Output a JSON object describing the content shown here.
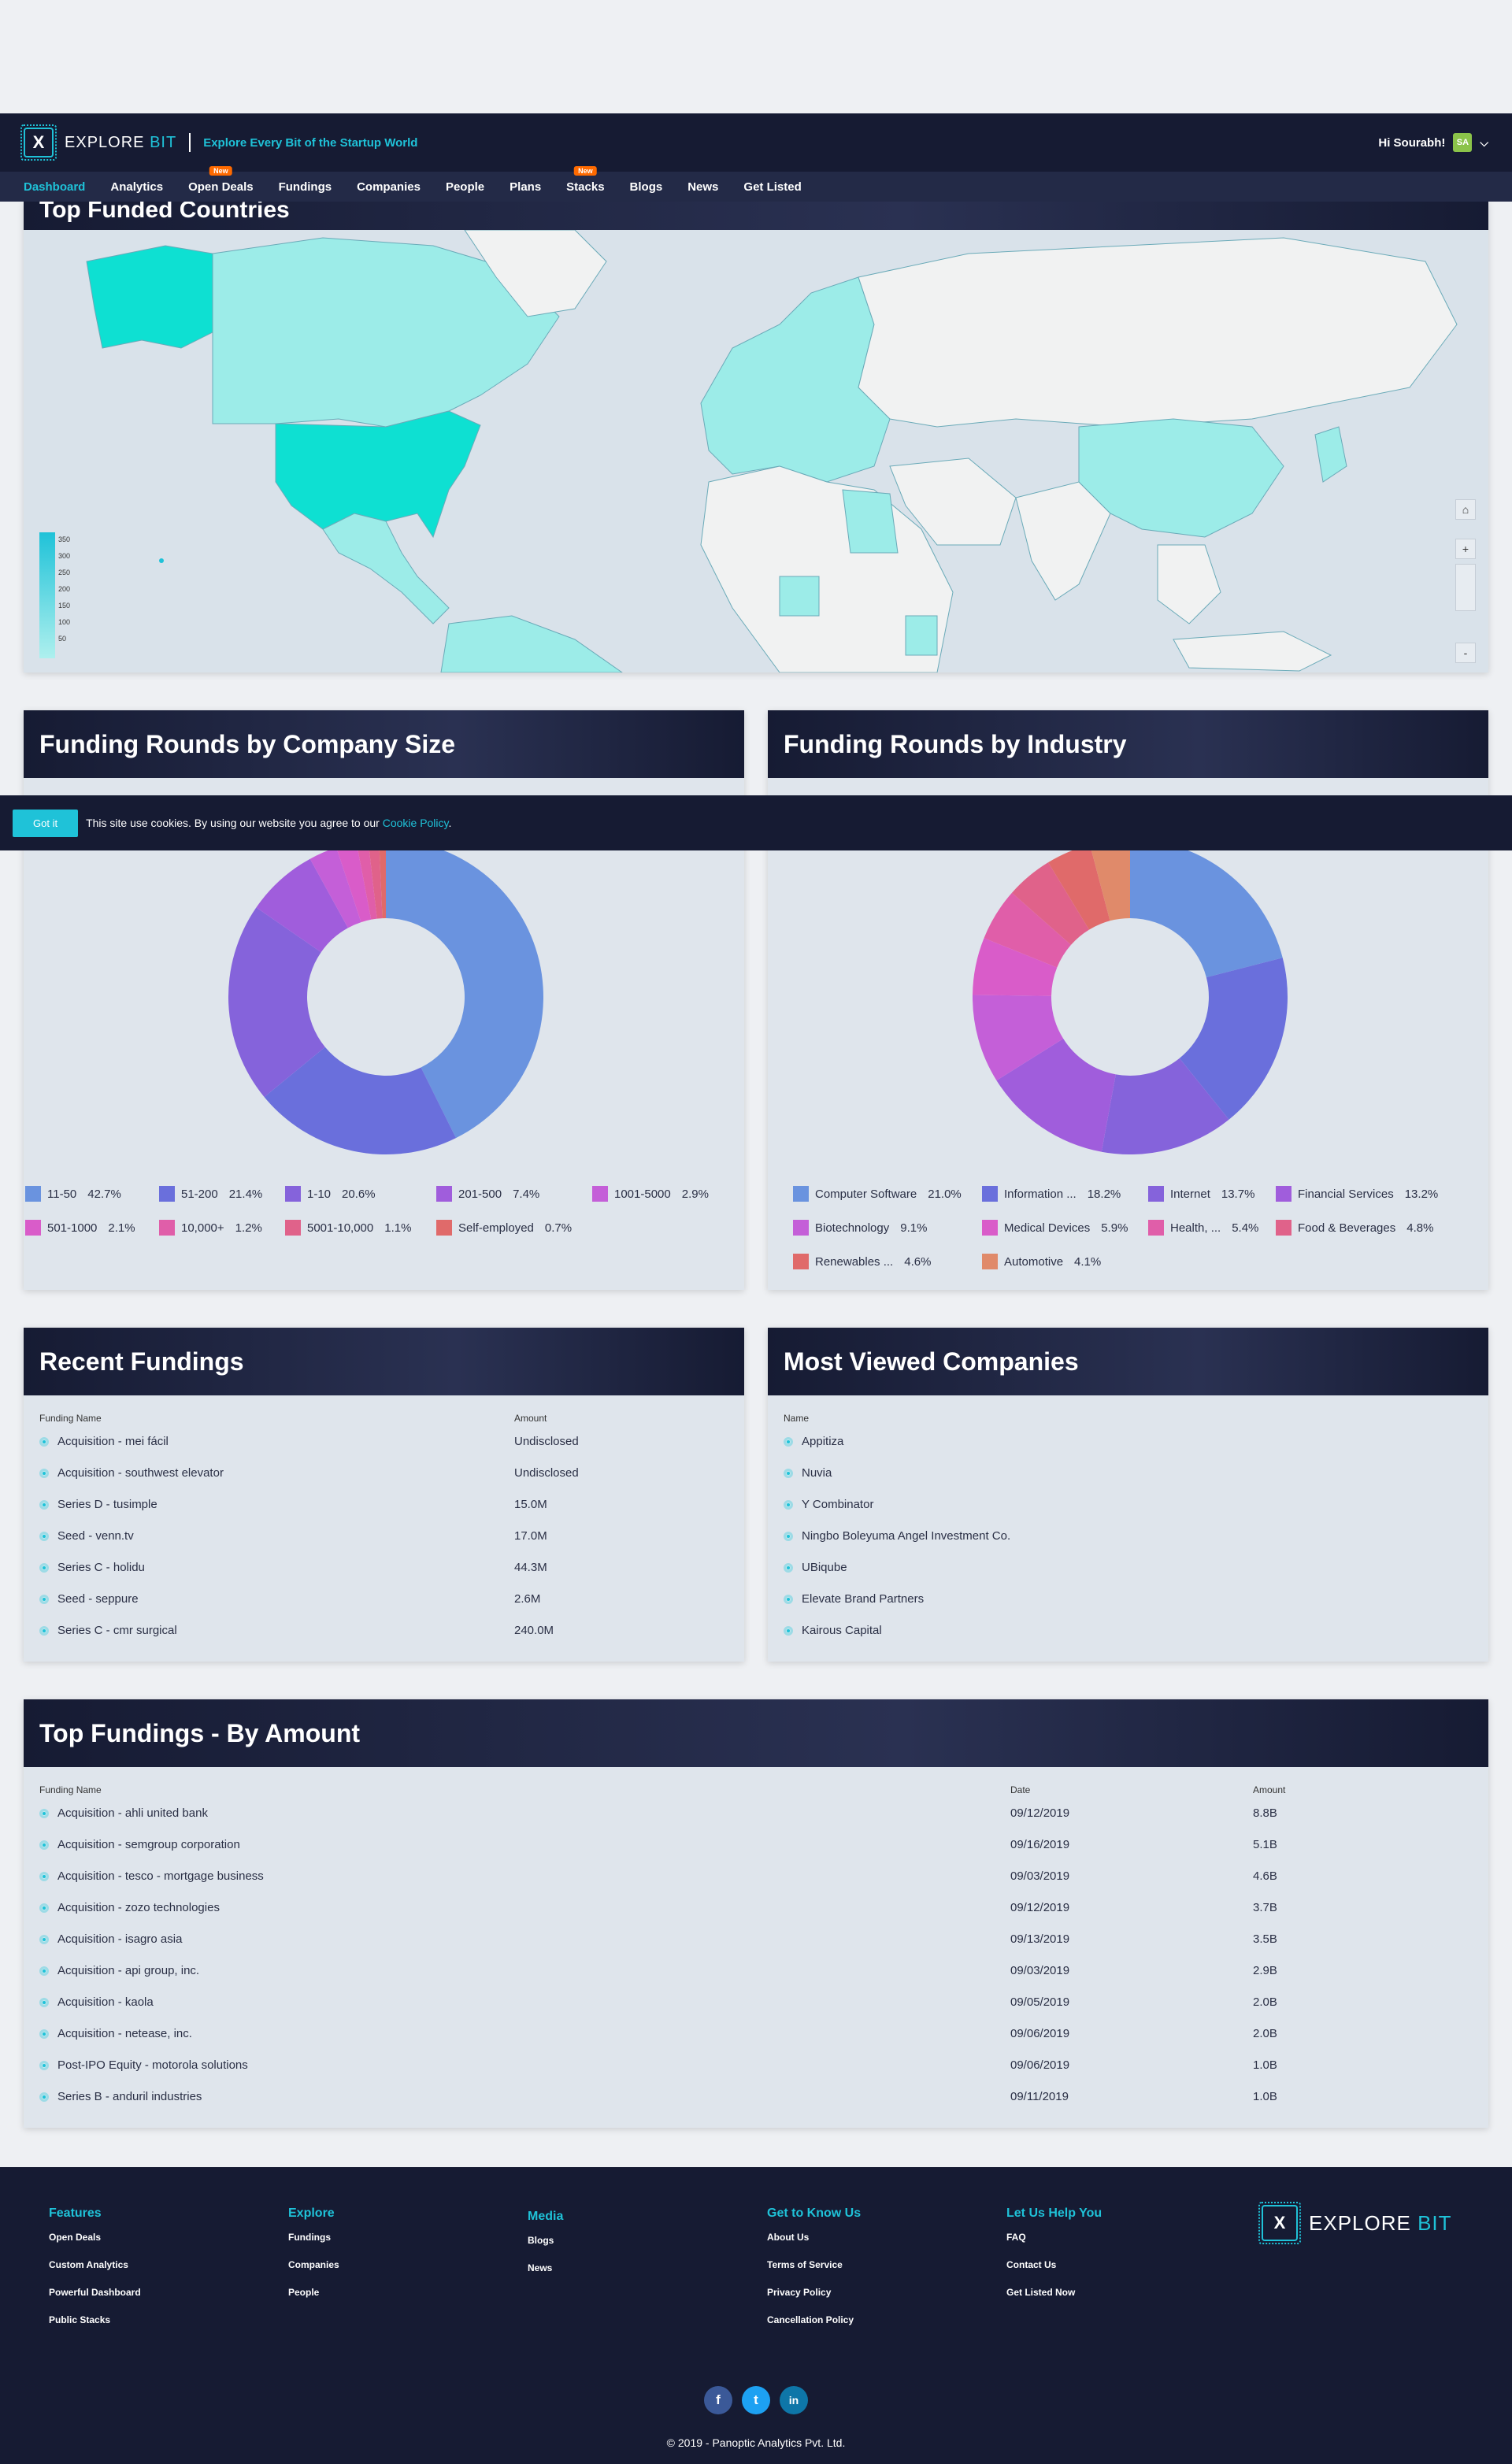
{
  "header": {
    "logo_left": "EX",
    "logo_mid": "PLORE",
    "logo_bit": "BIT",
    "tagline": "Explore Every Bit of the Startup World",
    "greeting": "Hi Sourabh!",
    "avatar": "SA"
  },
  "nav": [
    {
      "label": "Dashboard",
      "active": true
    },
    {
      "label": "Analytics"
    },
    {
      "label": "Open Deals",
      "badge": "New"
    },
    {
      "label": "Fundings"
    },
    {
      "label": "Companies"
    },
    {
      "label": "People"
    },
    {
      "label": "Plans"
    },
    {
      "label": "Stacks",
      "badge": "New"
    },
    {
      "label": "Blogs"
    },
    {
      "label": "News"
    },
    {
      "label": "Get Listed"
    }
  ],
  "map": {
    "title": "Top Funded Countries",
    "scale": [
      "350",
      "300",
      "250",
      "200",
      "150",
      "100",
      "50"
    ],
    "controls": {
      "home": "⌂",
      "zoom_in": "+",
      "zoom_out": "-"
    }
  },
  "cookie": {
    "button": "Got it",
    "text": "This site use cookies. By using our website you agree to our",
    "link": "Cookie Policy",
    "end": "."
  },
  "company_size": {
    "title": "Funding Rounds by Company Size",
    "chart_data": {
      "type": "pie",
      "categories": [
        "11-50",
        "51-200",
        "1-10",
        "201-500",
        "1001-5000",
        "501-1000",
        "10,000+",
        "5001-10,000",
        "Self-employed"
      ],
      "values": [
        42.7,
        21.4,
        20.6,
        7.4,
        2.9,
        2.1,
        1.2,
        1.1,
        0.7
      ],
      "labels": [
        "42.7%",
        "21.4%",
        "20.6%",
        "7.4%",
        "2.9%",
        "2.1%",
        "1.2%",
        "1.1%",
        "0.7%"
      ],
      "colors": [
        "#6a93df",
        "#6a6fdc",
        "#8563db",
        "#a05ddc",
        "#c45fd8",
        "#d95cc9",
        "#e05ea9",
        "#e0628a",
        "#e06a6a"
      ]
    }
  },
  "industry": {
    "title": "Funding Rounds by Industry",
    "chart_data": {
      "type": "pie",
      "categories": [
        "Computer Software",
        "Information ...",
        "Internet",
        "Financial Services",
        "Biotechnology",
        "Medical Devices",
        "Health, ...",
        "Food & Beverages",
        "Renewables ...",
        "Automotive"
      ],
      "values": [
        21.0,
        18.2,
        13.7,
        13.2,
        9.1,
        5.9,
        5.4,
        4.8,
        4.6,
        4.1
      ],
      "labels": [
        "21.0%",
        "18.2%",
        "13.7%",
        "13.2%",
        "9.1%",
        "5.9%",
        "5.4%",
        "4.8%",
        "4.6%",
        "4.1%"
      ],
      "colors": [
        "#6a93df",
        "#6a6fdc",
        "#8563db",
        "#a05ddc",
        "#c45fd8",
        "#d95cc9",
        "#e05ea9",
        "#e0628a",
        "#e06a6a",
        "#e08a6a"
      ]
    }
  },
  "recent": {
    "title": "Recent Fundings",
    "col_name": "Funding Name",
    "col_amount": "Amount",
    "rows": [
      {
        "name": "Acquisition - mei fácil",
        "amount": "Undisclosed"
      },
      {
        "name": "Acquisition - southwest elevator",
        "amount": "Undisclosed"
      },
      {
        "name": "Series D - tusimple",
        "amount": "15.0M"
      },
      {
        "name": "Seed - venn.tv",
        "amount": "17.0M"
      },
      {
        "name": "Series C - holidu",
        "amount": "44.3M"
      },
      {
        "name": "Seed - seppure",
        "amount": "2.6M"
      },
      {
        "name": "Series C - cmr surgical",
        "amount": "240.0M"
      }
    ]
  },
  "viewed": {
    "title": "Most Viewed Companies",
    "col_name": "Name",
    "rows": [
      "Appitiza",
      "Nuvia",
      "Y Combinator",
      "Ningbo Boleyuma Angel Investment Co.",
      "UBiqube",
      "Elevate Brand Partners",
      "Kairous Capital"
    ]
  },
  "top": {
    "title": "Top Fundings - By Amount",
    "col_name": "Funding Name",
    "col_date": "Date",
    "col_amount": "Amount",
    "rows": [
      {
        "name": "Acquisition - ahli united bank",
        "date": "09/12/2019",
        "amount": "8.8B"
      },
      {
        "name": "Acquisition - semgroup corporation",
        "date": "09/16/2019",
        "amount": "5.1B"
      },
      {
        "name": "Acquisition - tesco - mortgage business",
        "date": "09/03/2019",
        "amount": "4.6B"
      },
      {
        "name": "Acquisition - zozo technologies",
        "date": "09/12/2019",
        "amount": "3.7B"
      },
      {
        "name": "Acquisition - isagro asia",
        "date": "09/13/2019",
        "amount": "3.5B"
      },
      {
        "name": "Acquisition - api group, inc.",
        "date": "09/03/2019",
        "amount": "2.9B"
      },
      {
        "name": "Acquisition - kaola",
        "date": "09/05/2019",
        "amount": "2.0B"
      },
      {
        "name": "Acquisition - netease, inc.",
        "date": "09/06/2019",
        "amount": "2.0B"
      },
      {
        "name": "Post-IPO Equity - motorola solutions",
        "date": "09/06/2019",
        "amount": "1.0B"
      },
      {
        "name": "Series B - anduril industries",
        "date": "09/11/2019",
        "amount": "1.0B"
      }
    ]
  },
  "footer": {
    "cols": [
      {
        "title": "Features",
        "links": [
          "Open Deals",
          "Custom Analytics",
          "Powerful Dashboard",
          "Public Stacks"
        ]
      },
      {
        "title": "Explore",
        "links": [
          "Fundings",
          "Companies",
          "People"
        ]
      },
      {
        "title": "Media",
        "links": [
          "Blogs",
          "News"
        ]
      },
      {
        "title": "Get to Know Us",
        "links": [
          "About Us",
          "Terms of Service",
          "Privacy Policy",
          "Cancellation Policy"
        ]
      },
      {
        "title": "Let Us Help You",
        "links": [
          "FAQ",
          "Contact Us",
          "Get Listed Now"
        ]
      }
    ],
    "social": [
      "f",
      "t",
      "in"
    ],
    "copyright": "2019 - Panoptic Analytics Pvt. Ltd."
  }
}
